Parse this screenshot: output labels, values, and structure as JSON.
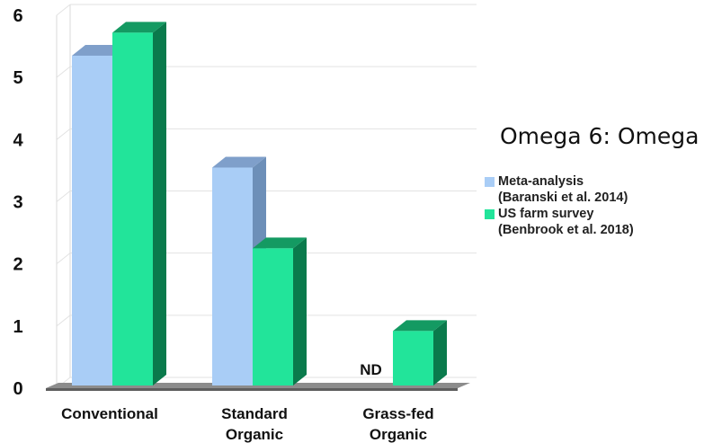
{
  "chart_data": {
    "type": "bar",
    "title": "Omega 6: Omega",
    "categories": [
      [
        "Conventional"
      ],
      [
        "Standard",
        "Organic"
      ],
      [
        "Grass-fed",
        "Organic"
      ]
    ],
    "ylim": [
      0,
      6
    ],
    "yticks": [
      "0",
      "1",
      "2",
      "3",
      "4",
      "5",
      "6"
    ],
    "grid": true,
    "legend_position": "right",
    "series": [
      {
        "name_lines": [
          "Meta-analysis",
          "(Baranski et al. 2014)"
        ],
        "color": "#a9cdf6",
        "side_color": "#6d8fb8",
        "top_color": "#7f9fca",
        "values": [
          5.35,
          3.55,
          null
        ]
      },
      {
        "name_lines": [
          "US farm survey",
          "(Benbrook et al. 2018)"
        ],
        "color": "#22e49a",
        "side_color": "#0a7a4c",
        "top_color": "#149a62",
        "values": [
          5.72,
          2.25,
          0.92
        ]
      }
    ],
    "annotations": [
      {
        "category_index": 2,
        "series_index": 0,
        "text": "ND"
      }
    ]
  }
}
